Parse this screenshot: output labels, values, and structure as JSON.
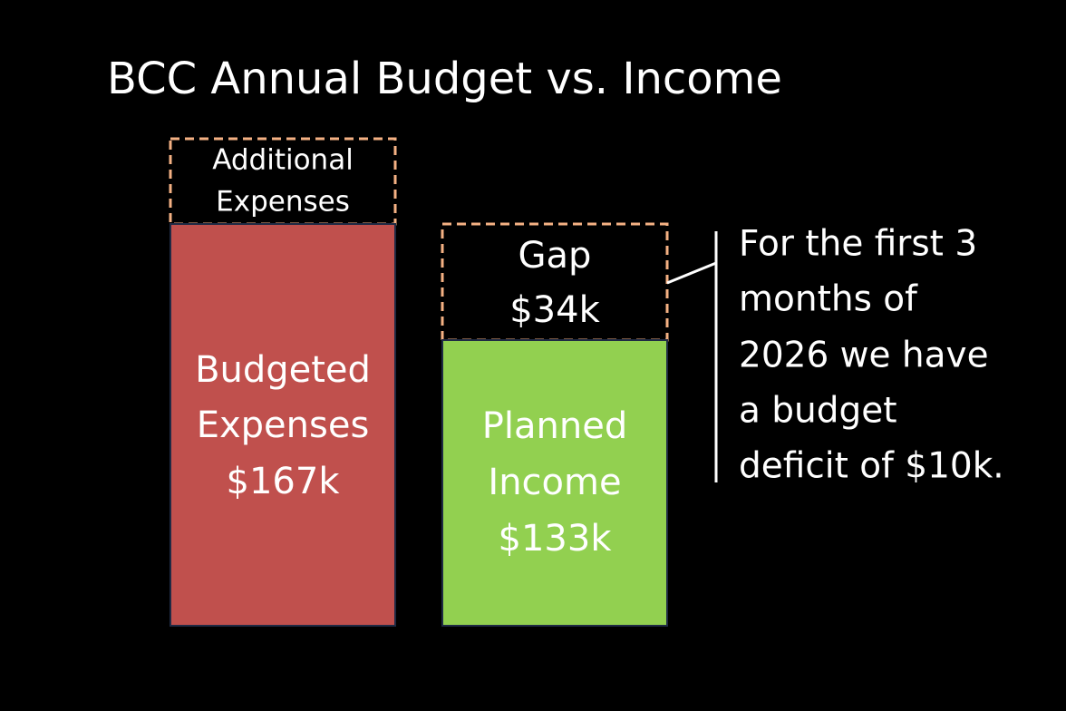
{
  "title": "BCC Annual Budget vs. Income",
  "boxes": [
    {
      "lines": [
        "Additional",
        "Expenses"
      ]
    },
    {
      "lines": [
        "Budgeted",
        "Expenses",
        "$167k"
      ]
    },
    {
      "lines": [
        "Gap",
        "$34k"
      ]
    },
    {
      "lines": [
        "Planned",
        "Income",
        "$133k"
      ]
    }
  ],
  "note": {
    "lines": [
      "For the first 3",
      "months of",
      "2026 we have",
      "a budget",
      "deficit of $10k."
    ]
  }
}
